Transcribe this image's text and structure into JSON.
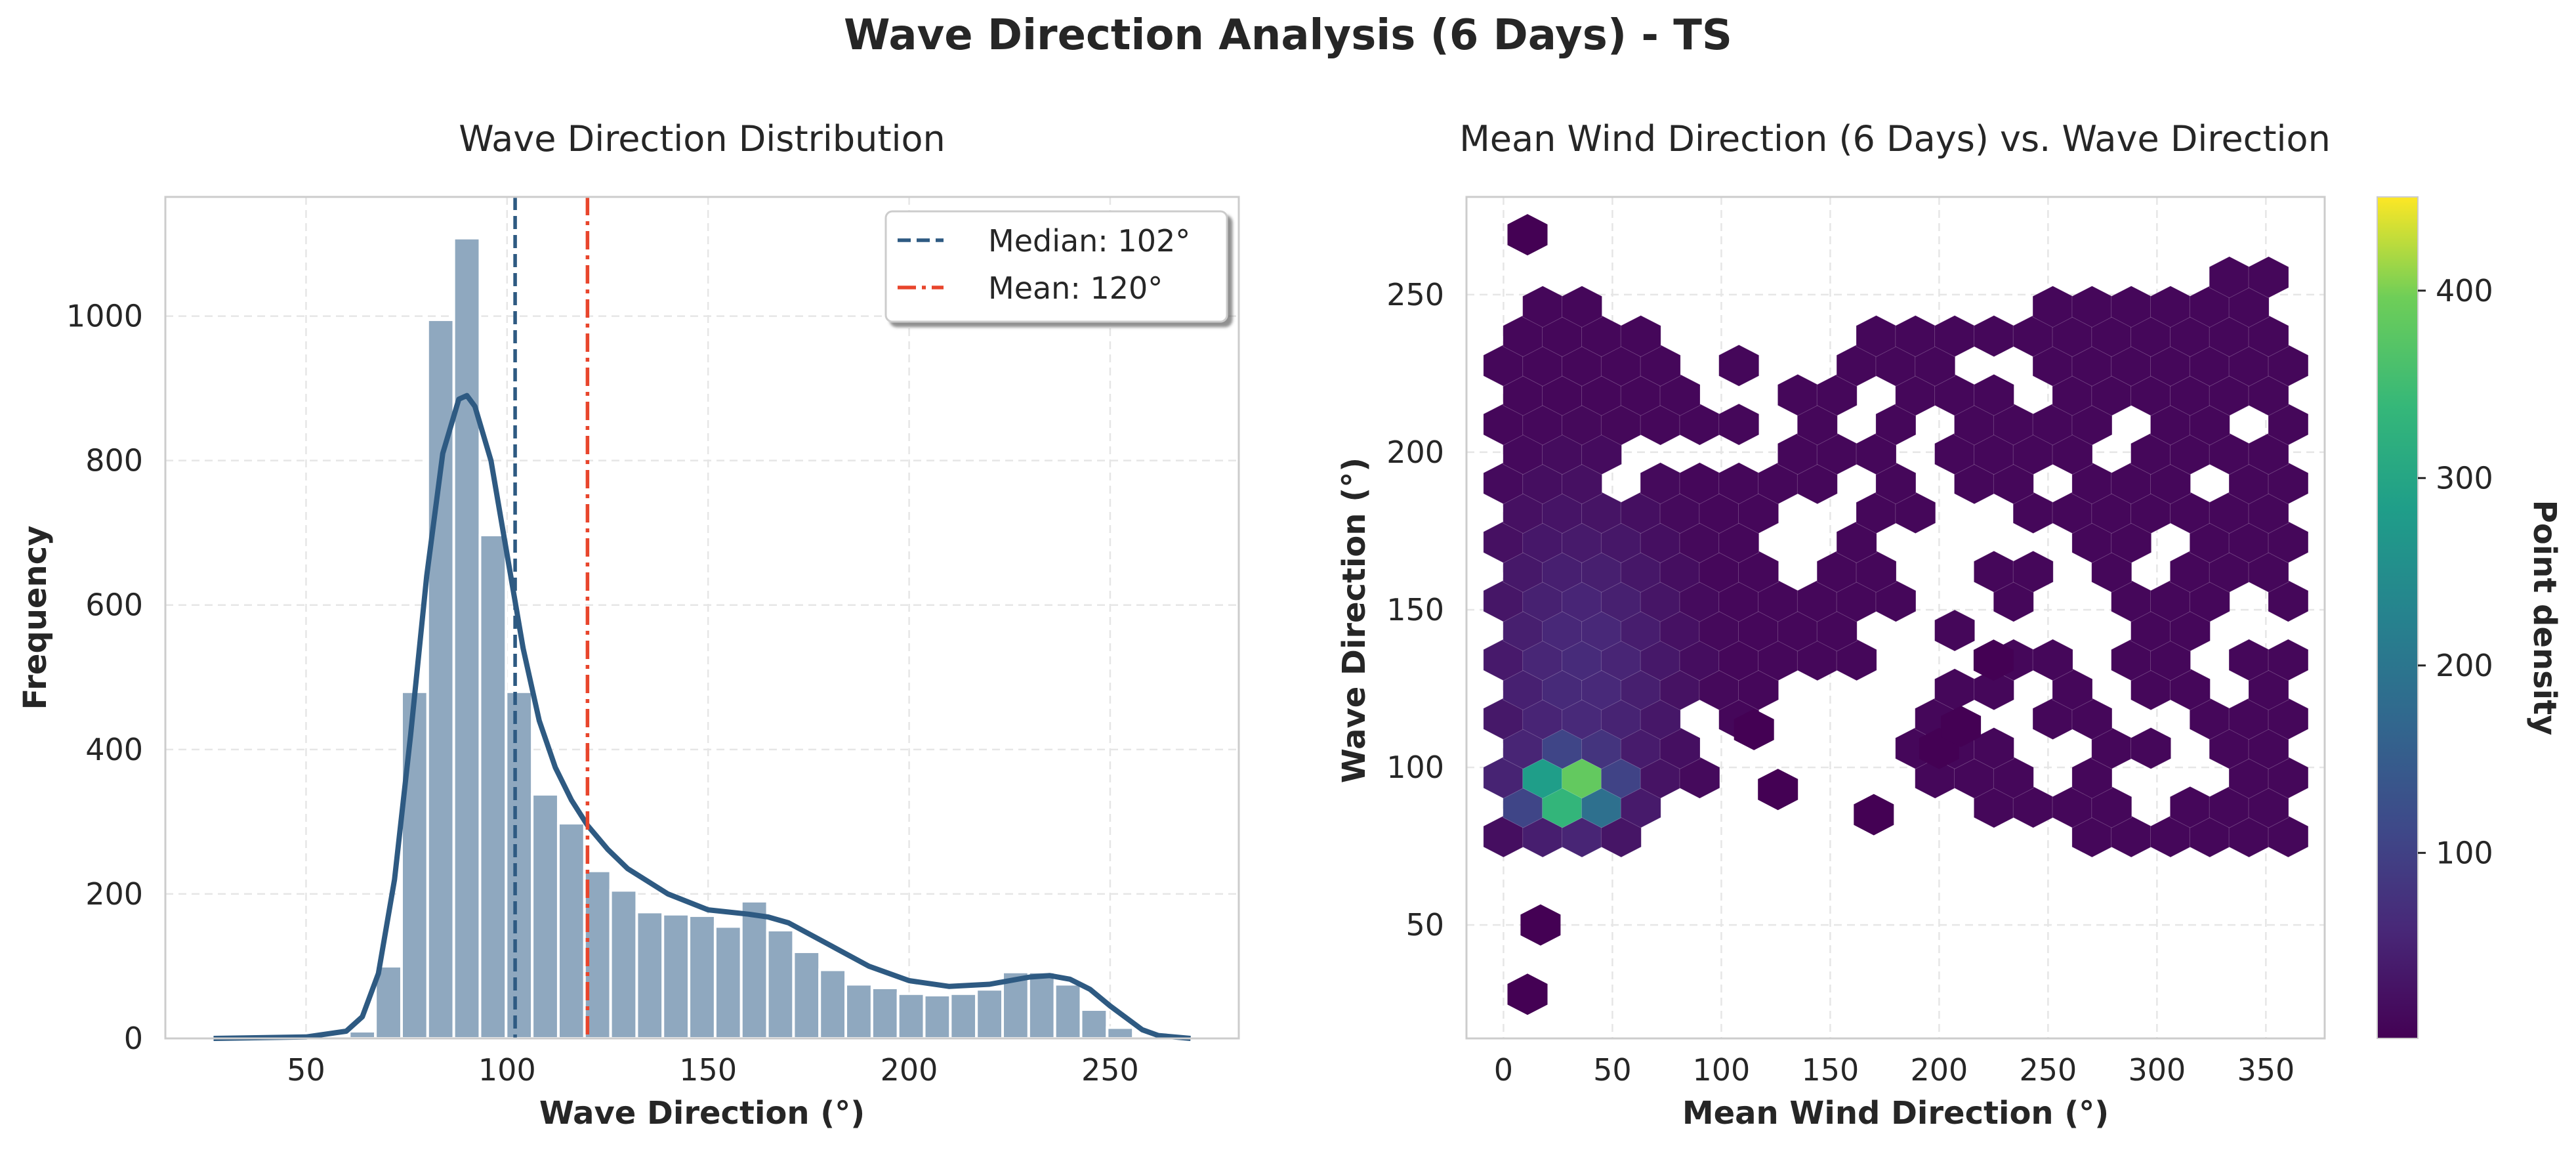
{
  "figure_title": "Wave Direction Analysis (6 Days) - TS",
  "colors": {
    "hist_bar": "#8fa8bf",
    "kde": "#2e5a82",
    "median_line": "#2e5a82",
    "mean_line": "#e8452c",
    "hex_colormap": "viridis"
  },
  "chart_data": [
    {
      "type": "bar",
      "subtype": "histogram_with_kde",
      "title": "Wave Direction Distribution",
      "xlabel": "Wave Direction (°)",
      "ylabel": "Frequency",
      "xlim": [
        15,
        282
      ],
      "ylim": [
        0,
        1165
      ],
      "xticks": [
        50,
        100,
        150,
        200,
        250
      ],
      "yticks": [
        0,
        200,
        400,
        600,
        800,
        1000
      ],
      "grid": true,
      "bin_width": 6.5,
      "bins": [
        {
          "x": 64,
          "value": 10
        },
        {
          "x": 70.5,
          "value": 100
        },
        {
          "x": 77,
          "value": 480
        },
        {
          "x": 83.5,
          "value": 995
        },
        {
          "x": 90,
          "value": 1108
        },
        {
          "x": 96.5,
          "value": 697
        },
        {
          "x": 103,
          "value": 480
        },
        {
          "x": 109.5,
          "value": 338
        },
        {
          "x": 116,
          "value": 298
        },
        {
          "x": 122.5,
          "value": 232
        },
        {
          "x": 129,
          "value": 205
        },
        {
          "x": 135.5,
          "value": 175
        },
        {
          "x": 142,
          "value": 172
        },
        {
          "x": 148.5,
          "value": 170
        },
        {
          "x": 155,
          "value": 155
        },
        {
          "x": 161.5,
          "value": 190
        },
        {
          "x": 168,
          "value": 150
        },
        {
          "x": 174.5,
          "value": 120
        },
        {
          "x": 181,
          "value": 95
        },
        {
          "x": 187.5,
          "value": 75
        },
        {
          "x": 194,
          "value": 70
        },
        {
          "x": 200.5,
          "value": 62
        },
        {
          "x": 207,
          "value": 60
        },
        {
          "x": 213.5,
          "value": 62
        },
        {
          "x": 220,
          "value": 68
        },
        {
          "x": 226.5,
          "value": 92
        },
        {
          "x": 233,
          "value": 92
        },
        {
          "x": 239.5,
          "value": 75
        },
        {
          "x": 246,
          "value": 40
        },
        {
          "x": 252.5,
          "value": 15
        }
      ],
      "kde": {
        "x": [
          27,
          50,
          60,
          64,
          68,
          72,
          76,
          80,
          84,
          88,
          90,
          92,
          96,
          100,
          104,
          108,
          112,
          116,
          120,
          125,
          130,
          140,
          150,
          160,
          165,
          170,
          180,
          190,
          200,
          210,
          220,
          230,
          235,
          240,
          245,
          250,
          258,
          262,
          270
        ],
        "y": [
          0,
          2,
          10,
          30,
          90,
          220,
          420,
          640,
          810,
          885,
          890,
          875,
          800,
          670,
          540,
          440,
          375,
          330,
          295,
          262,
          235,
          200,
          178,
          172,
          168,
          160,
          130,
          100,
          80,
          72,
          75,
          85,
          87,
          82,
          68,
          45,
          12,
          4,
          0
        ]
      },
      "reference_lines": [
        {
          "label": "Median: 102°",
          "x": 102,
          "style": "dashed"
        },
        {
          "label": "Mean: 120°",
          "x": 120,
          "style": "dashdot"
        }
      ],
      "legend_position": "top-right"
    },
    {
      "type": "heatmap",
      "subtype": "hexbin",
      "title": "Mean Wind Direction (6 Days) vs. Wave Direction",
      "xlabel": "Mean Wind Direction (°)",
      "ylabel": "Wave Direction (°)",
      "xlim": [
        -17,
        377
      ],
      "ylim": [
        14,
        281
      ],
      "xticks": [
        0,
        50,
        100,
        150,
        200,
        250,
        300,
        350
      ],
      "yticks": [
        50,
        100,
        150,
        200,
        250
      ],
      "grid": true,
      "colorbar": {
        "label": "Point density",
        "min": 1,
        "max": 450,
        "ticks": [
          100,
          200,
          300,
          400
        ]
      },
      "hex_size_x": 10.4,
      "hex_size_y": 5.7,
      "hotspot": {
        "x": 30,
        "y": 93,
        "peak": 450
      },
      "x_span": [
        0,
        360
      ],
      "y_low": [
        70,
        70,
        70,
        70,
        72,
        75,
        78,
        82,
        90,
        95,
        100,
        108,
        115,
        120,
        125,
        128,
        125,
        115,
        105,
        95,
        90,
        88,
        85,
        85,
        82,
        80,
        78,
        78,
        77,
        76,
        75,
        74,
        74,
        74,
        75,
        76,
        77
      ],
      "y_high": [
        245,
        250,
        248,
        245,
        248,
        250,
        240,
        235,
        235,
        235,
        232,
        235,
        228,
        225,
        225,
        228,
        240,
        240,
        235,
        242,
        245,
        240,
        238,
        240,
        245,
        250,
        252,
        248,
        250,
        250,
        250,
        250,
        252,
        255,
        262,
        258,
        245
      ],
      "holes": [
        [
          170,
          190
        ],
        [
          185,
          170
        ],
        [
          200,
          165
        ],
        [
          210,
          175
        ],
        [
          215,
          155
        ],
        [
          190,
          150
        ],
        [
          195,
          130
        ],
        [
          220,
          140
        ],
        [
          225,
          115
        ],
        [
          230,
          175
        ],
        [
          200,
          210
        ],
        [
          190,
          195
        ],
        [
          165,
          215
        ],
        [
          120,
          205
        ],
        [
          100,
          200
        ],
        [
          75,
          200
        ],
        [
          60,
          195
        ],
        [
          95,
          225
        ],
        [
          160,
          180
        ],
        [
          250,
          190
        ],
        [
          260,
          165
        ],
        [
          245,
          150
        ],
        [
          270,
          150
        ],
        [
          280,
          120
        ],
        [
          300,
          115
        ],
        [
          335,
          145
        ],
        [
          325,
          130
        ],
        [
          315,
          100
        ],
        [
          290,
          95
        ],
        [
          260,
          100
        ],
        [
          245,
          125
        ],
        [
          175,
          140
        ],
        [
          180,
          120
        ],
        [
          130,
          175
        ],
        [
          140,
          165
        ],
        [
          235,
          105
        ],
        [
          95,
          110
        ],
        [
          320,
          190
        ],
        [
          340,
          210
        ],
        [
          280,
          205
        ],
        [
          240,
          220
        ],
        [
          210,
          228
        ],
        [
          150,
          230
        ],
        [
          120,
          225
        ],
        [
          350,
          150
        ],
        [
          300,
          170
        ],
        [
          270,
          135
        ],
        [
          135,
          120
        ]
      ],
      "outliers": [
        [
          11,
          269
        ],
        [
          11,
          28
        ],
        [
          17,
          50
        ],
        [
          170,
          85
        ],
        [
          126,
          93
        ],
        [
          200,
          106
        ],
        [
          210,
          113
        ],
        [
          225,
          134
        ],
        [
          115,
          112
        ]
      ]
    }
  ]
}
